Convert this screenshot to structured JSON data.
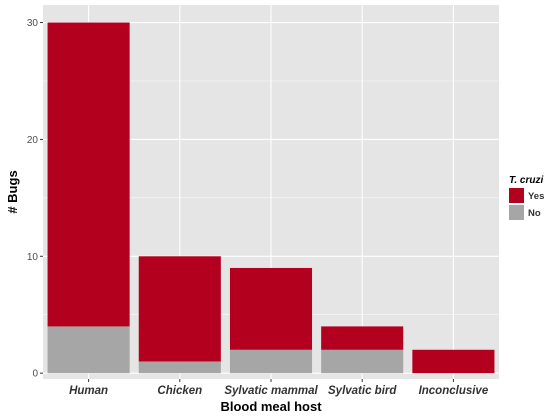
{
  "chart_data": {
    "type": "bar",
    "stacked": true,
    "categories": [
      "Human",
      "Chicken",
      "Sylvatic mammal",
      "Sylvatic bird",
      "Inconclusive"
    ],
    "series": [
      {
        "name": "No",
        "values": [
          4,
          1,
          2,
          2,
          0
        ],
        "color": "#a6a6a6"
      },
      {
        "name": "Yes",
        "values": [
          26,
          9,
          7,
          2,
          2
        ],
        "color": "#b2001e"
      }
    ],
    "xlabel": "Blood meal host",
    "ylabel": "# Bugs",
    "ylim": [
      -0.5,
      31.5
    ],
    "yticks": [
      0,
      10,
      20,
      30
    ],
    "ytick_labels": [
      "0",
      "10",
      "20",
      "30"
    ],
    "grid": true,
    "legend": {
      "title": "T. cruzi",
      "position": "right",
      "entries": [
        {
          "label": "Yes",
          "color": "#b2001e"
        },
        {
          "label": "No",
          "color": "#a6a6a6"
        }
      ]
    },
    "panel_background": "#e5e5e5",
    "grid_color": "#ffffff"
  }
}
